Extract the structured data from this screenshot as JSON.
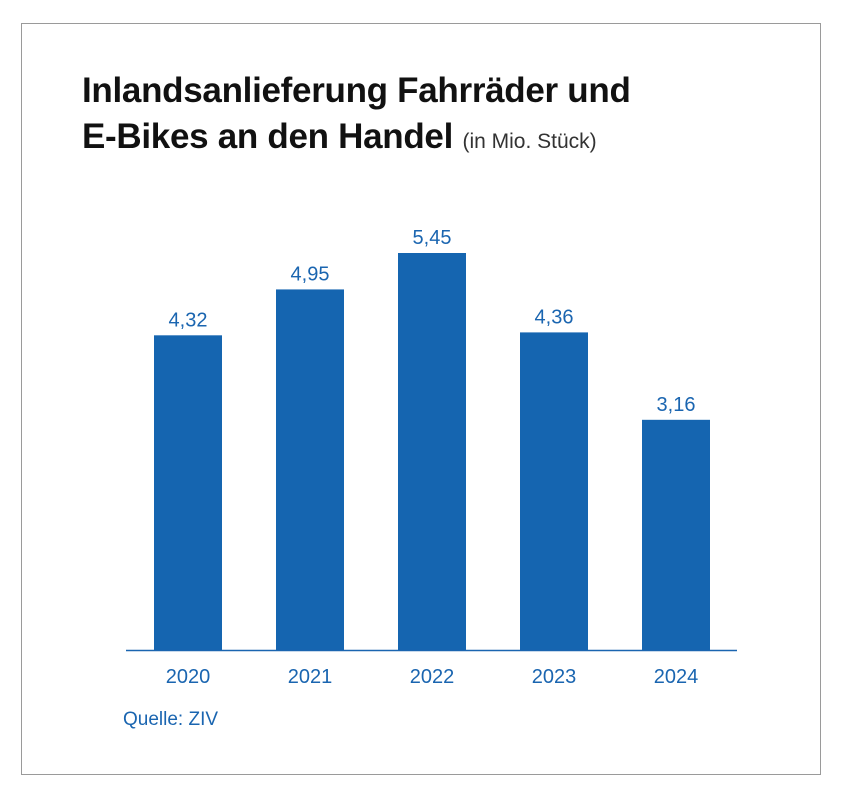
{
  "title_line1": "Inlandsanlieferung Fahrräder und",
  "title_line2": "E-Bikes an den Handel",
  "unit": "(in Mio. Stück)",
  "source": "Quelle: ZIV",
  "colors": {
    "bar": "#1565b0",
    "label": "#1a65b0",
    "axis": "#1a65b0",
    "title": "#111111",
    "frame": "#9a9a9a"
  },
  "chart_data": {
    "type": "bar",
    "title": "Inlandsanlieferung Fahrräder und E-Bikes an den Handel (in Mio. Stück)",
    "categories": [
      "2020",
      "2021",
      "2022",
      "2023",
      "2024"
    ],
    "values": [
      4.32,
      4.95,
      5.45,
      4.36,
      3.16
    ],
    "data_labels": [
      "4,32",
      "4,95",
      "5,45",
      "4,36",
      "3,16"
    ],
    "xlabel": "",
    "ylabel": "",
    "ylim": [
      0,
      5.45
    ],
    "grid": false,
    "legend": "none"
  }
}
